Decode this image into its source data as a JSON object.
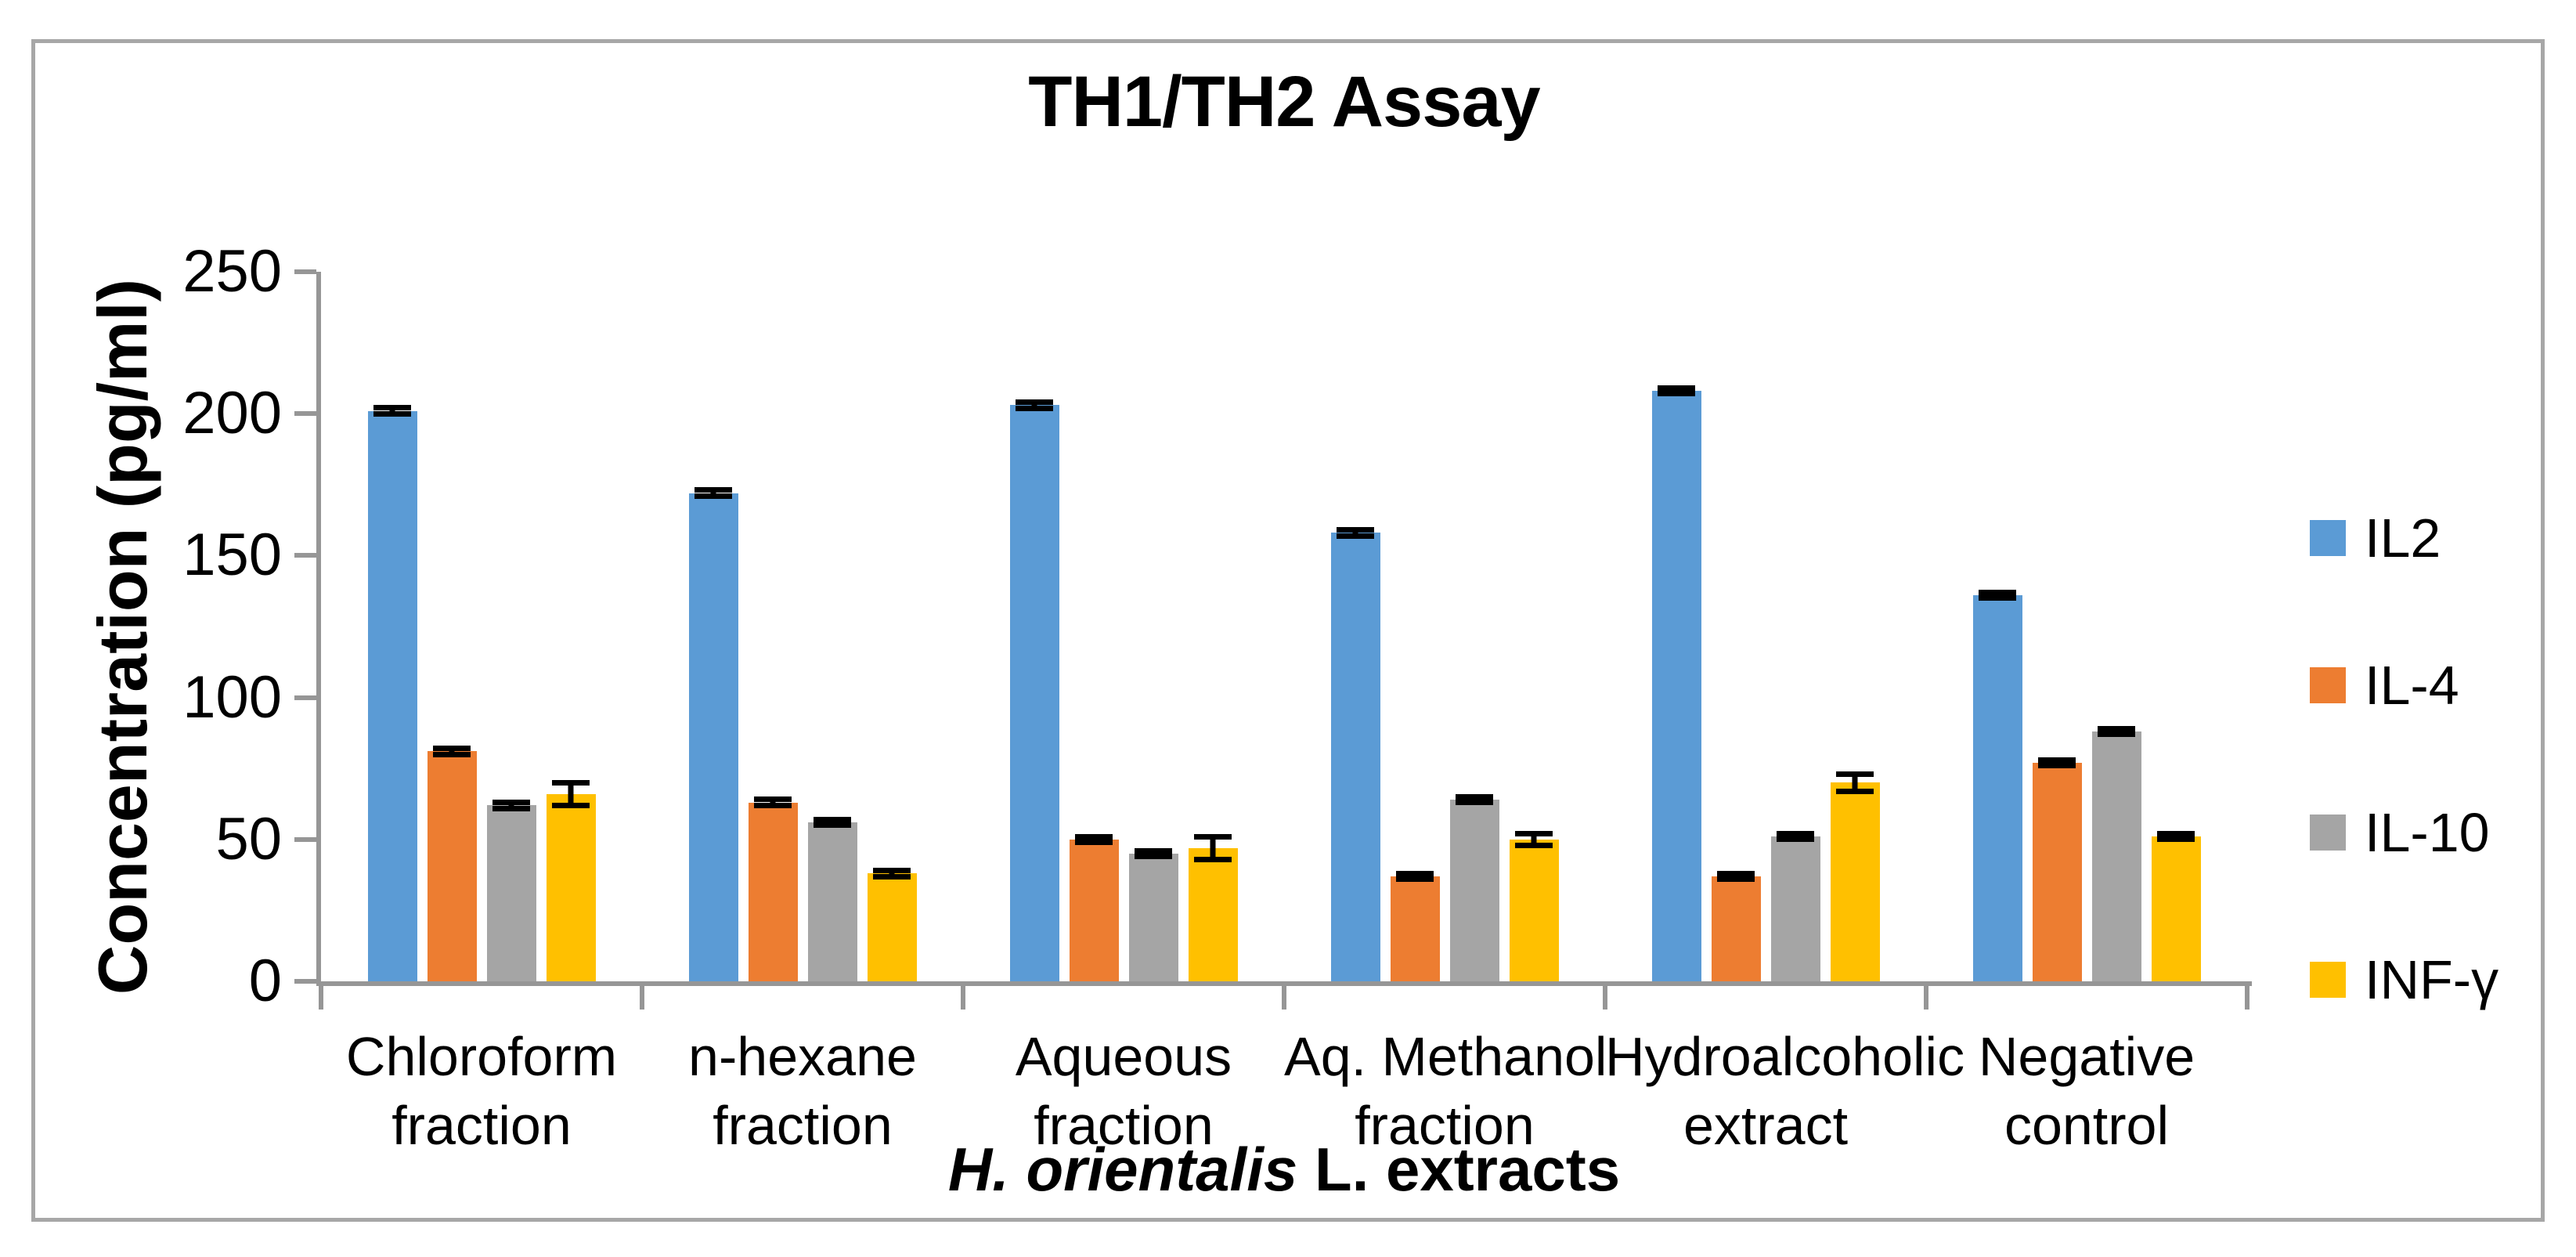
{
  "title": "TH1/TH2 Assay",
  "y_axis": {
    "label": "Concentration (pg/ml)",
    "ticks": [
      "0",
      "50",
      "100",
      "150",
      "200",
      "250"
    ]
  },
  "x_axis": {
    "title_italic": "H. orientalis",
    "title_rest": " L. extracts"
  },
  "legend": {
    "position": "right",
    "items": [
      {
        "label": "IL2",
        "color": "#5B9BD5"
      },
      {
        "label": "IL-4",
        "color": "#ED7D31"
      },
      {
        "label": "IL-10",
        "color": "#A5A5A5"
      },
      {
        "label": "INF-γ",
        "color": "#FFC000"
      }
    ]
  },
  "colors": {
    "axis": "#969696",
    "frame": "#A7A7A7",
    "error_bar": "#000000"
  },
  "chart_data": {
    "type": "bar",
    "title": "TH1/TH2 Assay",
    "xlabel": "H. orientalis L. extracts",
    "ylabel": "Concentration (pg/ml)",
    "ylim": [
      0,
      250
    ],
    "ytick_interval": 50,
    "grid": false,
    "error_bars": true,
    "legend_position": "right",
    "categories": [
      "Chloroform fraction",
      "n-hexane fraction",
      "Aqueous fraction",
      "Aq. Methanol fraction",
      "Hydroalcoholic extract",
      "Negative control"
    ],
    "categories_lines": [
      [
        "Chloroform",
        "fraction"
      ],
      [
        "n-hexane",
        "fraction"
      ],
      [
        "Aqueous",
        "fraction"
      ],
      [
        "Aq. Methanol",
        "fraction"
      ],
      [
        "Hydroalcoholic",
        "extract"
      ],
      [
        "Negative",
        "control"
      ]
    ],
    "series": [
      {
        "name": "IL2",
        "color": "#5B9BD5",
        "values": [
          201,
          172,
          203,
          158,
          208,
          136
        ],
        "errors": [
          2,
          2,
          2,
          2,
          2,
          2
        ]
      },
      {
        "name": "IL-4",
        "color": "#ED7D31",
        "values": [
          81,
          63,
          50,
          37,
          37,
          77
        ],
        "errors": [
          2,
          2,
          2,
          2,
          2,
          2
        ]
      },
      {
        "name": "IL-10",
        "color": "#A5A5A5",
        "values": [
          62,
          56,
          45,
          64,
          51,
          88
        ],
        "errors": [
          2,
          2,
          2,
          2,
          2,
          2
        ]
      },
      {
        "name": "INF-γ",
        "color": "#FFC000",
        "values": [
          66,
          38,
          47,
          50,
          70,
          51
        ],
        "errors": [
          5,
          2,
          5,
          3,
          4,
          2
        ]
      }
    ]
  }
}
